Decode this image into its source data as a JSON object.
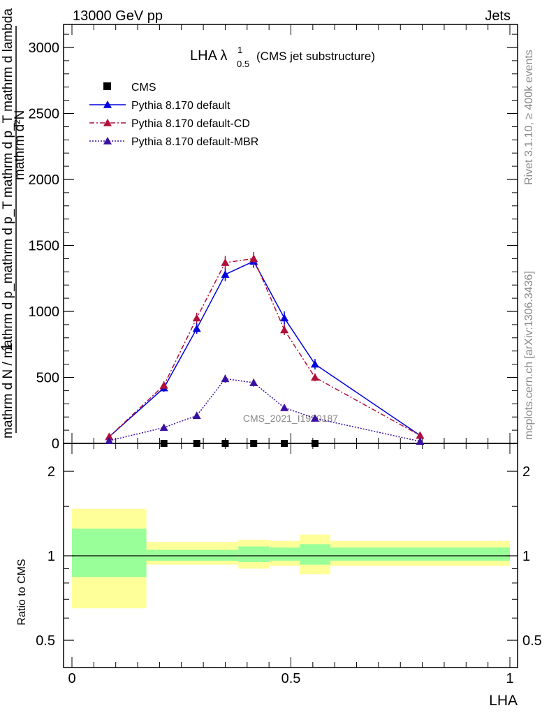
{
  "header": {
    "left": "13000 GeV pp",
    "right": "Jets"
  },
  "side": {
    "rivet": "Rivet 3.1.10, ≥ 400k events",
    "mcplots": "mcplots.cern.ch [arXiv:1306.3436]"
  },
  "watermark": "CMS_2021_I1920187",
  "title": {
    "main": "LHA λ",
    "sup": "1",
    "sub": "0.5",
    "suffix": "(CMS jet substructure)"
  },
  "ylabel_top": {
    "numerator": "1",
    "denominator": "mathrm d N / mathrm d p_mathrm d p_T mathrm d p_T mathrm d lambda",
    "num_part": "mathrm d²N"
  },
  "ratio_ylabel": "Ratio to CMS",
  "xlabel": "LHA",
  "legend": [
    {
      "label": "CMS",
      "marker": "square",
      "color": "#000000",
      "line": "none"
    },
    {
      "label": "Pythia 8.170 default",
      "marker": "triangle",
      "color": "#0000dd",
      "line": "solid"
    },
    {
      "label": "Pythia 8.170 default-CD",
      "marker": "triangle",
      "color": "#b0103a",
      "line": "dashdot"
    },
    {
      "label": "Pythia 8.170 default-MBR",
      "marker": "triangle",
      "color": "#3a10a0",
      "line": "dotted"
    }
  ],
  "chart_data": [
    {
      "type": "line",
      "title": "LHA λ^1_0.5 (CMS jet substructure)",
      "xlabel": "LHA",
      "ylabel": "1 / (mathrm d N / mathrm d p_T) · mathrm d²N / (mathrm d p_T mathrm d lambda)",
      "xlim": [
        0,
        1
      ],
      "ylim": [
        0,
        3000
      ],
      "yticks": [
        0,
        500,
        1000,
        1500,
        2000,
        2500,
        3000
      ],
      "ytick_labels": [
        "0",
        "500",
        "1000",
        "1500",
        "2000",
        "2500",
        "3000"
      ],
      "series": [
        {
          "name": "CMS",
          "color": "#000000",
          "marker": "square",
          "x": [
            0.21,
            0.285,
            0.35,
            0.415,
            0.485,
            0.555
          ],
          "y": [
            0,
            0,
            0,
            0,
            0,
            0
          ]
        },
        {
          "name": "Pythia 8.170 default",
          "color": "#0000dd",
          "line": "solid",
          "x": [
            0.085,
            0.21,
            0.285,
            0.35,
            0.415,
            0.485,
            0.555,
            0.795
          ],
          "y": [
            50,
            420,
            870,
            1280,
            1380,
            950,
            600,
            60
          ],
          "err": [
            10,
            30,
            40,
            50,
            50,
            50,
            40,
            10
          ]
        },
        {
          "name": "Pythia 8.170 default-CD",
          "color": "#b0103a",
          "line": "dashdot",
          "x": [
            0.085,
            0.21,
            0.285,
            0.35,
            0.415,
            0.485,
            0.555,
            0.795
          ],
          "y": [
            50,
            440,
            950,
            1370,
            1400,
            860,
            500,
            60
          ],
          "err": [
            10,
            30,
            40,
            50,
            50,
            40,
            30,
            10
          ]
        },
        {
          "name": "Pythia 8.170 default-MBR",
          "color": "#3a10a0",
          "line": "dotted",
          "x": [
            0.085,
            0.21,
            0.285,
            0.35,
            0.415,
            0.485,
            0.555,
            0.795
          ],
          "y": [
            20,
            120,
            210,
            490,
            460,
            270,
            190,
            15
          ],
          "err": [
            5,
            15,
            20,
            30,
            30,
            20,
            15,
            5
          ]
        }
      ]
    },
    {
      "type": "area",
      "ylabel": "Ratio to CMS",
      "xlabel": "LHA",
      "xlim": [
        0,
        1
      ],
      "ylim": [
        0.35,
        2.25
      ],
      "yticks": [
        0.5,
        1,
        2
      ],
      "ytick_labels": [
        "0.5",
        "1",
        "2"
      ],
      "xticks": [
        0,
        0.5,
        1
      ],
      "xtick_labels": [
        "0",
        "0.5",
        "1"
      ],
      "bins": [
        {
          "x0": 0.0,
          "x1": 0.17,
          "yellow": [
            0.65,
            1.47
          ],
          "green": [
            0.84,
            1.25
          ]
        },
        {
          "x0": 0.17,
          "x1": 0.245,
          "yellow": [
            0.93,
            1.12
          ],
          "green": [
            0.96,
            1.05
          ]
        },
        {
          "x0": 0.245,
          "x1": 0.32,
          "yellow": [
            0.93,
            1.12
          ],
          "green": [
            0.96,
            1.05
          ]
        },
        {
          "x0": 0.32,
          "x1": 0.38,
          "yellow": [
            0.93,
            1.12
          ],
          "green": [
            0.96,
            1.05
          ]
        },
        {
          "x0": 0.38,
          "x1": 0.45,
          "yellow": [
            0.9,
            1.14
          ],
          "green": [
            0.95,
            1.08
          ]
        },
        {
          "x0": 0.45,
          "x1": 0.52,
          "yellow": [
            0.92,
            1.13
          ],
          "green": [
            0.96,
            1.07
          ]
        },
        {
          "x0": 0.52,
          "x1": 0.59,
          "yellow": [
            0.86,
            1.19
          ],
          "green": [
            0.93,
            1.1
          ]
        },
        {
          "x0": 0.59,
          "x1": 1.0,
          "yellow": [
            0.92,
            1.13
          ],
          "green": [
            0.96,
            1.07
          ]
        }
      ],
      "reference_line": 1
    }
  ]
}
